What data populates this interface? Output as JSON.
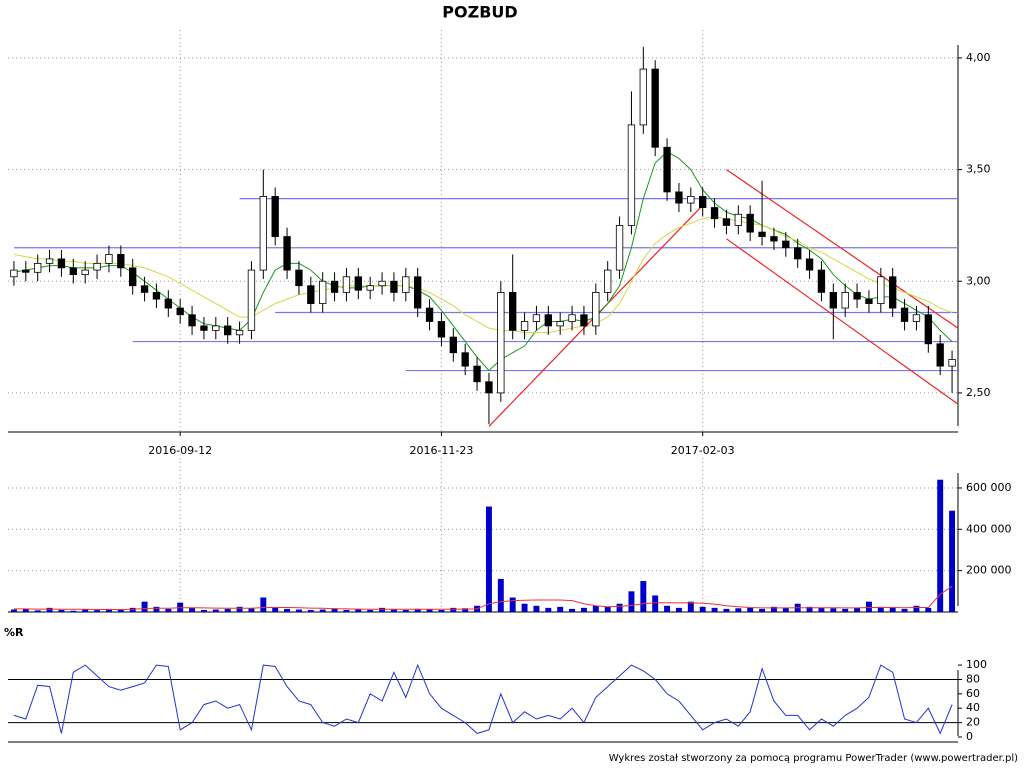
{
  "chart_data": [
    {
      "type": "candlestick",
      "title": "POZBUD",
      "categories": [
        null,
        null,
        null,
        null,
        null,
        null,
        null,
        null,
        null,
        null,
        null,
        null,
        null,
        null,
        "2016-09-12",
        null,
        null,
        null,
        null,
        null,
        null,
        null,
        null,
        null,
        null,
        null,
        null,
        null,
        null,
        null,
        null,
        null,
        null,
        null,
        null,
        null,
        "2016-11-23",
        null,
        null,
        null,
        null,
        null,
        null,
        null,
        null,
        null,
        null,
        null,
        null,
        null,
        null,
        null,
        null,
        null,
        null,
        null,
        null,
        null,
        "2017-02-03",
        null,
        null,
        null,
        null,
        null,
        null,
        null,
        null,
        null,
        null,
        null,
        null,
        null,
        null,
        null,
        null,
        null,
        null,
        null,
        null,
        null
      ],
      "open": [
        3.02,
        3.05,
        3.04,
        3.08,
        3.1,
        3.06,
        3.03,
        3.05,
        3.08,
        3.12,
        3.06,
        2.98,
        2.95,
        2.92,
        2.88,
        2.85,
        2.8,
        2.78,
        2.8,
        2.76,
        2.78,
        3.05,
        3.38,
        3.2,
        3.05,
        2.98,
        2.9,
        3.0,
        2.95,
        3.02,
        2.96,
        2.98,
        3.0,
        2.95,
        3.02,
        2.88,
        2.82,
        2.75,
        2.68,
        2.62,
        2.55,
        2.5,
        2.95,
        2.78,
        2.82,
        2.85,
        2.8,
        2.82,
        2.85,
        2.8,
        2.95,
        3.05,
        3.25,
        3.7,
        3.95,
        3.6,
        3.4,
        3.35,
        3.38,
        3.33,
        3.28,
        3.25,
        3.3,
        3.22,
        3.2,
        3.18,
        3.15,
        3.1,
        3.05,
        2.95,
        2.88,
        2.95,
        2.92,
        2.9,
        3.02,
        2.88,
        2.82,
        2.85,
        2.72,
        2.62
      ],
      "high": [
        3.09,
        3.09,
        3.12,
        3.14,
        3.14,
        3.1,
        3.09,
        3.12,
        3.16,
        3.16,
        3.1,
        3.02,
        2.99,
        2.96,
        2.92,
        2.89,
        2.84,
        2.84,
        2.84,
        2.82,
        3.09,
        3.5,
        3.42,
        3.24,
        3.09,
        3.02,
        3.04,
        3.04,
        3.06,
        3.06,
        3.02,
        3.04,
        3.04,
        3.06,
        3.06,
        2.92,
        2.86,
        2.79,
        2.72,
        2.66,
        2.59,
        3.0,
        3.12,
        2.86,
        2.89,
        2.89,
        2.86,
        2.89,
        2.89,
        2.99,
        3.09,
        3.29,
        3.85,
        4.05,
        3.99,
        3.64,
        3.44,
        3.42,
        3.42,
        3.37,
        3.32,
        3.34,
        3.34,
        3.45,
        3.24,
        3.22,
        3.19,
        3.14,
        3.09,
        2.99,
        2.99,
        2.99,
        2.96,
        3.06,
        3.06,
        2.92,
        2.89,
        2.89,
        2.76,
        2.69
      ],
      "low": [
        2.98,
        3.0,
        3.0,
        3.04,
        3.02,
        2.99,
        2.99,
        3.01,
        3.04,
        3.02,
        2.94,
        2.91,
        2.88,
        2.84,
        2.81,
        2.76,
        2.74,
        2.74,
        2.72,
        2.72,
        2.74,
        3.01,
        3.16,
        3.01,
        2.94,
        2.86,
        2.86,
        2.91,
        2.91,
        2.92,
        2.92,
        2.94,
        2.91,
        2.91,
        2.84,
        2.78,
        2.71,
        2.64,
        2.58,
        2.51,
        2.36,
        2.46,
        2.74,
        2.74,
        2.78,
        2.76,
        2.76,
        2.78,
        2.76,
        2.76,
        2.91,
        3.01,
        3.21,
        3.66,
        3.56,
        3.36,
        3.31,
        3.31,
        3.29,
        3.24,
        3.21,
        3.21,
        3.18,
        3.16,
        3.14,
        3.11,
        3.06,
        3.01,
        2.91,
        2.74,
        2.84,
        2.88,
        2.86,
        2.86,
        2.84,
        2.78,
        2.78,
        2.68,
        2.58,
        2.5
      ],
      "close": [
        3.05,
        3.04,
        3.08,
        3.1,
        3.06,
        3.03,
        3.05,
        3.08,
        3.12,
        3.06,
        2.98,
        2.95,
        2.92,
        2.88,
        2.85,
        2.8,
        2.78,
        2.8,
        2.76,
        2.78,
        3.05,
        3.38,
        3.2,
        3.05,
        2.98,
        2.9,
        3.0,
        2.95,
        3.02,
        2.96,
        2.98,
        3.0,
        2.95,
        3.02,
        2.88,
        2.82,
        2.75,
        2.68,
        2.62,
        2.55,
        2.5,
        2.95,
        2.78,
        2.82,
        2.85,
        2.8,
        2.82,
        2.85,
        2.8,
        2.95,
        3.05,
        3.25,
        3.7,
        3.95,
        3.6,
        3.4,
        3.35,
        3.38,
        3.33,
        3.28,
        3.25,
        3.3,
        3.22,
        3.2,
        3.18,
        3.15,
        3.1,
        3.05,
        2.95,
        2.88,
        2.95,
        2.92,
        2.9,
        3.02,
        2.88,
        2.82,
        2.85,
        2.72,
        2.62,
        2.65
      ],
      "overlays": [
        {
          "color": "#1a9a1a",
          "values": [
            3.04,
            3.05,
            3.06,
            3.07,
            3.07,
            3.06,
            3.06,
            3.06,
            3.07,
            3.07,
            3.04,
            3.0,
            2.96,
            2.92,
            2.88,
            2.84,
            2.81,
            2.8,
            2.79,
            2.78,
            2.83,
            2.95,
            3.05,
            3.08,
            3.08,
            3.05,
            3.0,
            2.98,
            2.97,
            2.97,
            2.98,
            2.98,
            2.98,
            2.98,
            2.96,
            2.93,
            2.87,
            2.8,
            2.73,
            2.66,
            2.6,
            2.65,
            2.68,
            2.71,
            2.78,
            2.82,
            2.82,
            2.83,
            2.82,
            2.84,
            2.9,
            2.98,
            3.15,
            3.37,
            3.53,
            3.58,
            3.55,
            3.5,
            3.41,
            3.35,
            3.31,
            3.29,
            3.28,
            3.25,
            3.23,
            3.21,
            3.17,
            3.14,
            3.1,
            3.03,
            2.98,
            2.94,
            2.92,
            2.93,
            2.93,
            2.9,
            2.87,
            2.84,
            2.78,
            2.73
          ]
        },
        {
          "color": "#d8d840",
          "values": [
            3.12,
            3.11,
            3.1,
            3.1,
            3.09,
            3.09,
            3.08,
            3.08,
            3.08,
            3.08,
            3.07,
            3.06,
            3.04,
            3.02,
            2.99,
            2.96,
            2.93,
            2.9,
            2.87,
            2.84,
            2.84,
            2.87,
            2.9,
            2.92,
            2.94,
            2.95,
            2.96,
            2.97,
            2.98,
            2.98,
            2.98,
            2.98,
            2.98,
            2.98,
            2.97,
            2.95,
            2.92,
            2.89,
            2.85,
            2.82,
            2.79,
            2.78,
            2.78,
            2.77,
            2.77,
            2.77,
            2.78,
            2.79,
            2.8,
            2.81,
            2.84,
            2.9,
            3.0,
            3.1,
            3.17,
            3.21,
            3.24,
            3.26,
            3.28,
            3.29,
            3.28,
            3.27,
            3.26,
            3.25,
            3.23,
            3.2,
            3.18,
            3.15,
            3.13,
            3.1,
            3.07,
            3.04,
            3.01,
            2.99,
            2.97,
            2.95,
            2.93,
            2.91,
            2.88,
            2.86
          ]
        }
      ],
      "hlines": {
        "color": "#7777ee",
        "items": [
          {
            "value": 3.37,
            "start": 19
          },
          {
            "value": 3.15,
            "start": 0
          },
          {
            "value": 2.86,
            "start": 22
          },
          {
            "value": 2.73,
            "start": 10
          },
          {
            "value": 2.6,
            "start": 33
          }
        ]
      },
      "trendlines": {
        "color": "#ee2222",
        "items": [
          {
            "x": [
              40,
              58
            ],
            "y": [
              2.35,
              3.34
            ]
          },
          {
            "x": [
              60,
              79.5
            ],
            "y": [
              3.5,
              2.79
            ]
          },
          {
            "x": [
              60,
              79.5
            ],
            "y": [
              3.19,
              2.45
            ]
          }
        ]
      },
      "ylim": [
        2.325,
        4.125
      ],
      "yticks": [
        {
          "value": 2.5,
          "label": "2,50"
        },
        {
          "value": 3.0,
          "label": "3,00"
        },
        {
          "value": 3.5,
          "label": "3,50"
        },
        {
          "value": 4.0,
          "label": "4,00"
        }
      ],
      "grid": true
    },
    {
      "type": "bar",
      "color": "#0000cc",
      "values": [
        12000,
        15000,
        8000,
        20000,
        10000,
        6000,
        12000,
        9000,
        15000,
        10000,
        20000,
        50000,
        25000,
        15000,
        45000,
        20000,
        10000,
        12000,
        15000,
        25000,
        18000,
        70000,
        20000,
        15000,
        12000,
        10000,
        12000,
        18000,
        10000,
        14000,
        10000,
        20000,
        12000,
        10000,
        15000,
        12000,
        10000,
        20000,
        18000,
        30000,
        510000,
        160000,
        70000,
        40000,
        30000,
        20000,
        25000,
        15000,
        20000,
        30000,
        25000,
        40000,
        100000,
        150000,
        80000,
        30000,
        20000,
        50000,
        25000,
        20000,
        15000,
        18000,
        20000,
        15000,
        25000,
        20000,
        40000,
        25000,
        20000,
        18000,
        15000,
        20000,
        50000,
        25000,
        20000,
        15000,
        30000,
        20000,
        640000,
        490000
      ],
      "average": {
        "color": "#ee3333",
        "values": [
          15000,
          15000,
          14000,
          14000,
          13000,
          13000,
          13000,
          12000,
          12000,
          12000,
          13000,
          17000,
          18000,
          18000,
          21000,
          21000,
          20000,
          19000,
          18000,
          18000,
          18000,
          22000,
          22000,
          22000,
          21000,
          19000,
          18000,
          16000,
          15000,
          14000,
          13000,
          13000,
          13000,
          13000,
          13000,
          13000,
          13000,
          14000,
          14000,
          15000,
          40000,
          50000,
          55000,
          57000,
          58000,
          58000,
          58000,
          55000,
          40000,
          30000,
          25000,
          27000,
          32000,
          40000,
          45000,
          45000,
          44000,
          45000,
          42000,
          38000,
          30000,
          25000,
          22000,
          20000,
          20000,
          20000,
          21000,
          21000,
          21000,
          21000,
          20000,
          20000,
          22000,
          22000,
          22000,
          21000,
          22000,
          22000,
          85000,
          125000
        ]
      },
      "ylim": [
        0,
        745000
      ],
      "yticks": [
        {
          "value": 200000,
          "label": "200 000"
        },
        {
          "value": 400000,
          "label": "400 000"
        },
        {
          "value": 600000,
          "label": "600 000"
        }
      ],
      "grid": true
    },
    {
      "type": "line",
      "title": "%R",
      "color": "#2233cc",
      "values": [
        30,
        25,
        72,
        70,
        5,
        90,
        100,
        85,
        70,
        65,
        70,
        75,
        100,
        98,
        10,
        20,
        45,
        50,
        40,
        45,
        10,
        100,
        98,
        70,
        50,
        45,
        20,
        15,
        25,
        20,
        60,
        50,
        90,
        55,
        100,
        60,
        40,
        30,
        20,
        5,
        10,
        60,
        20,
        35,
        25,
        30,
        25,
        40,
        20,
        55,
        70,
        85,
        100,
        92,
        80,
        60,
        50,
        30,
        10,
        20,
        25,
        15,
        35,
        95,
        50,
        30,
        30,
        10,
        25,
        15,
        30,
        40,
        55,
        100,
        90,
        25,
        20,
        40,
        5,
        45
      ],
      "levels": [
        20,
        80
      ],
      "ylim": [
        -7,
        114
      ],
      "yticks": [
        0,
        20,
        40,
        60,
        80,
        100
      ],
      "grid": false
    }
  ],
  "footer": "Wykres został stworzony za pomocą programu PowerTrader (www.powertrader.pl)"
}
